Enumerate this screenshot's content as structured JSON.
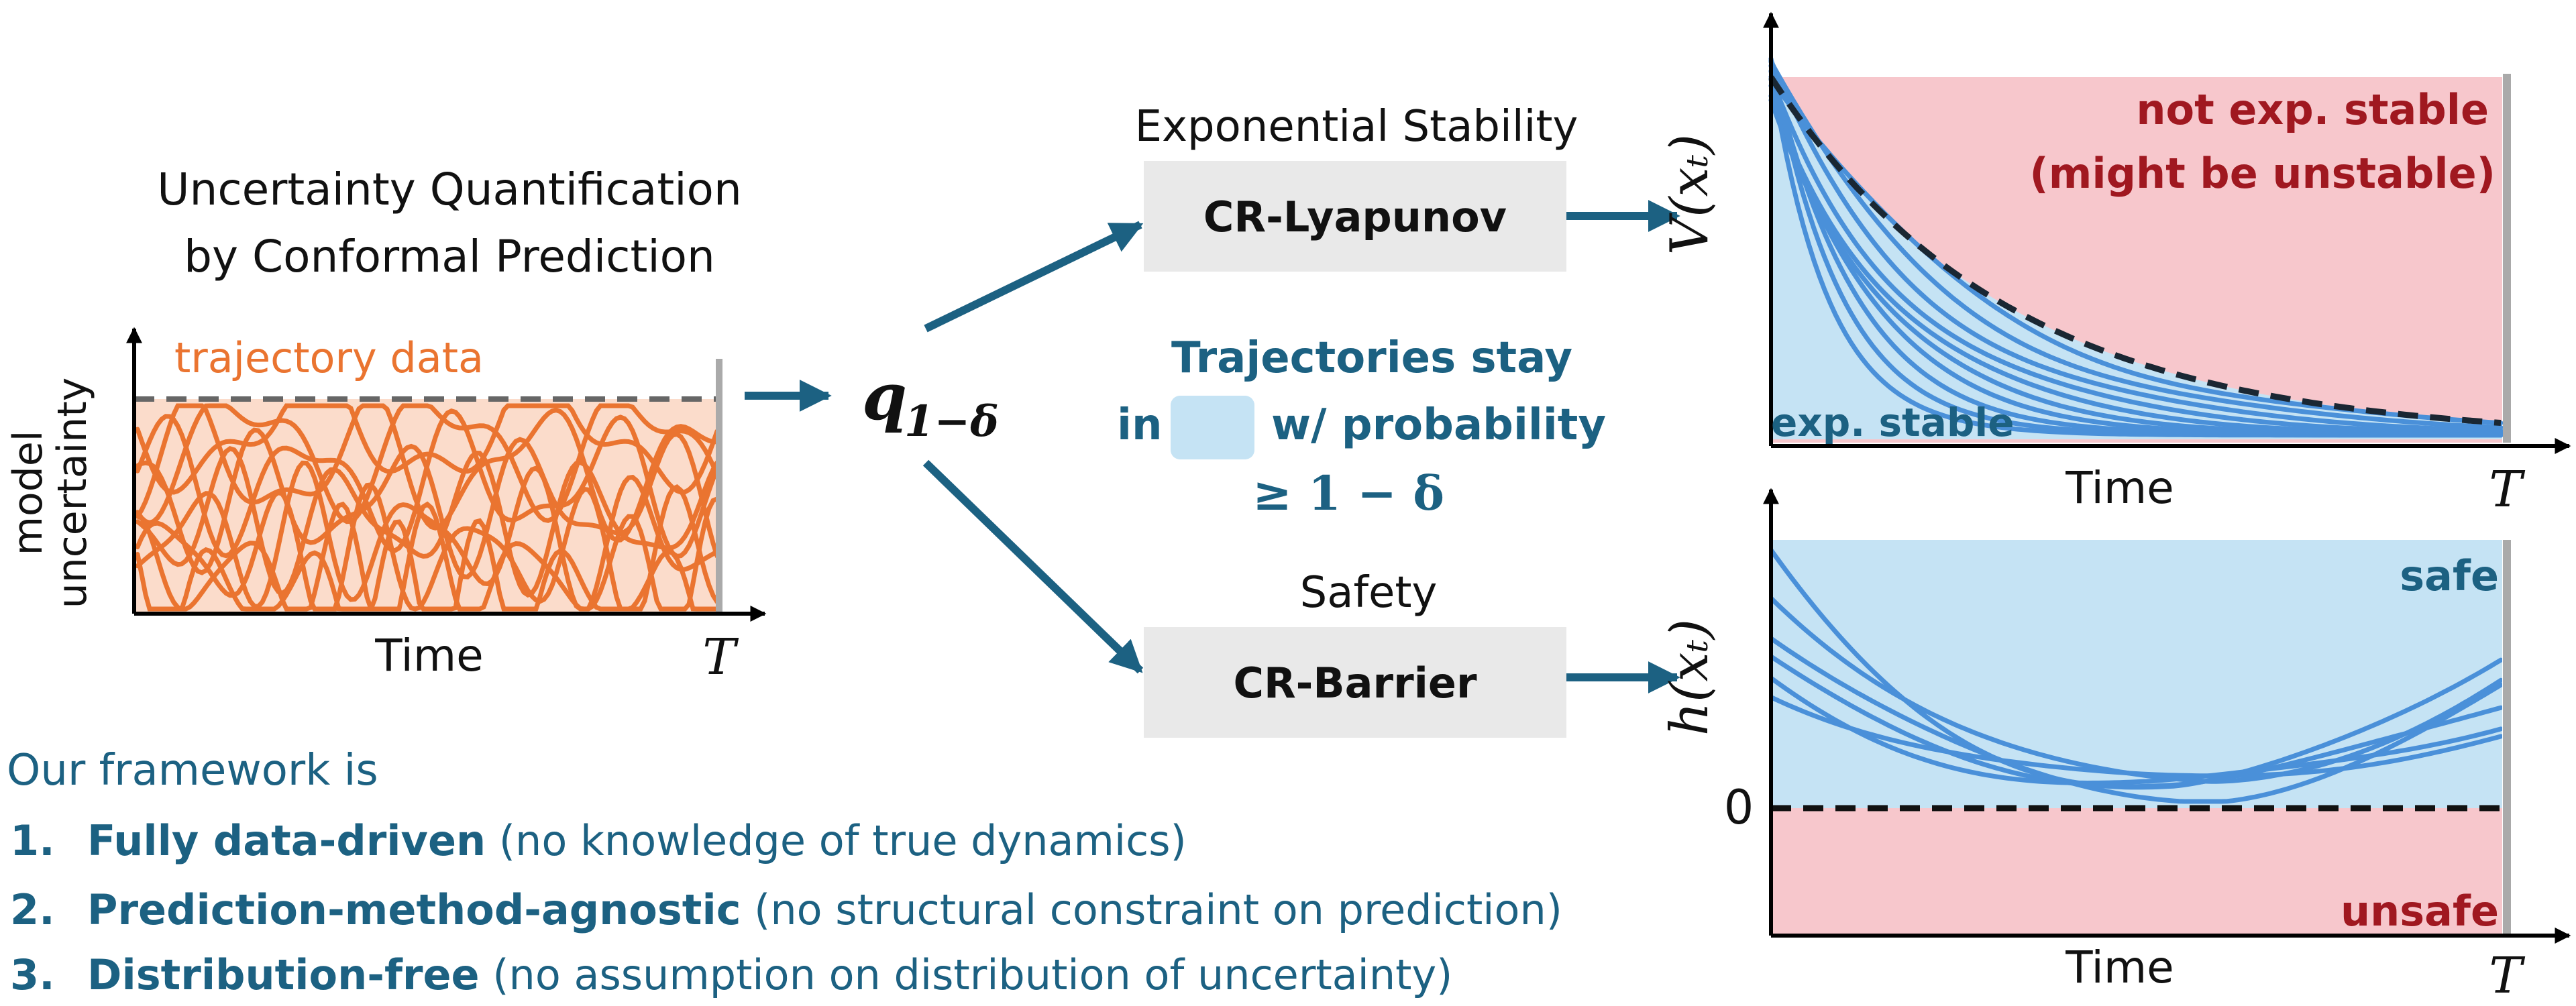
{
  "colors": {
    "teal": "#1c6182",
    "orange": "#ea7430",
    "orange_fill": "#fbdccb",
    "blue_line": "#4a90d9",
    "blue_fill": "#c5e3f4",
    "red_fill": "#f7c7cc",
    "dark_red": "#a01820",
    "box_gray": "#e9e9e9",
    "text_dark": "#111111"
  },
  "uq": {
    "title_line1": "Uncertainty Quantification",
    "title_line2": "by Conformal Prediction",
    "series_label": "trajectory data",
    "ylabel_line1": "model",
    "ylabel_line2": "uncertainty",
    "xlabel": "Time",
    "t_end": "T"
  },
  "quantile": {
    "symbol": "q",
    "subscript": "1−δ"
  },
  "lyapunov": {
    "heading": "Exponential Stability",
    "box_label": "CR-Lyapunov"
  },
  "barrier": {
    "heading": "Safety",
    "box_label": "CR-Barrier"
  },
  "guarantee": {
    "line1": "Trajectories stay",
    "in_word": "in",
    "prob_word": "w/ probability",
    "line3": "≥ 1 − δ"
  },
  "stability_plot": {
    "ylabel": "V(xₜ)",
    "region_top_line1": "not exp. stable",
    "region_top_line2": "(might be unstable)",
    "region_bottom": "exp. stable",
    "xlabel": "Time",
    "t_end": "T"
  },
  "safety_plot": {
    "ylabel": "h(xₜ)",
    "region_top": "safe",
    "region_bottom": "unsafe",
    "zero_tick": "0",
    "xlabel": "Time",
    "t_end": "T"
  },
  "framework": {
    "intro": "Our framework is",
    "items": [
      {
        "num": "1.",
        "bold": "Fully data-driven",
        "rest": " (no knowledge of true dynamics)"
      },
      {
        "num": "2.",
        "bold": "Prediction-method-agnostic",
        "rest": " (no structural constraint on prediction)"
      },
      {
        "num": "3.",
        "bold": "Distribution-free",
        "rest": " (no assumption on distribution of uncertainty)"
      }
    ]
  }
}
